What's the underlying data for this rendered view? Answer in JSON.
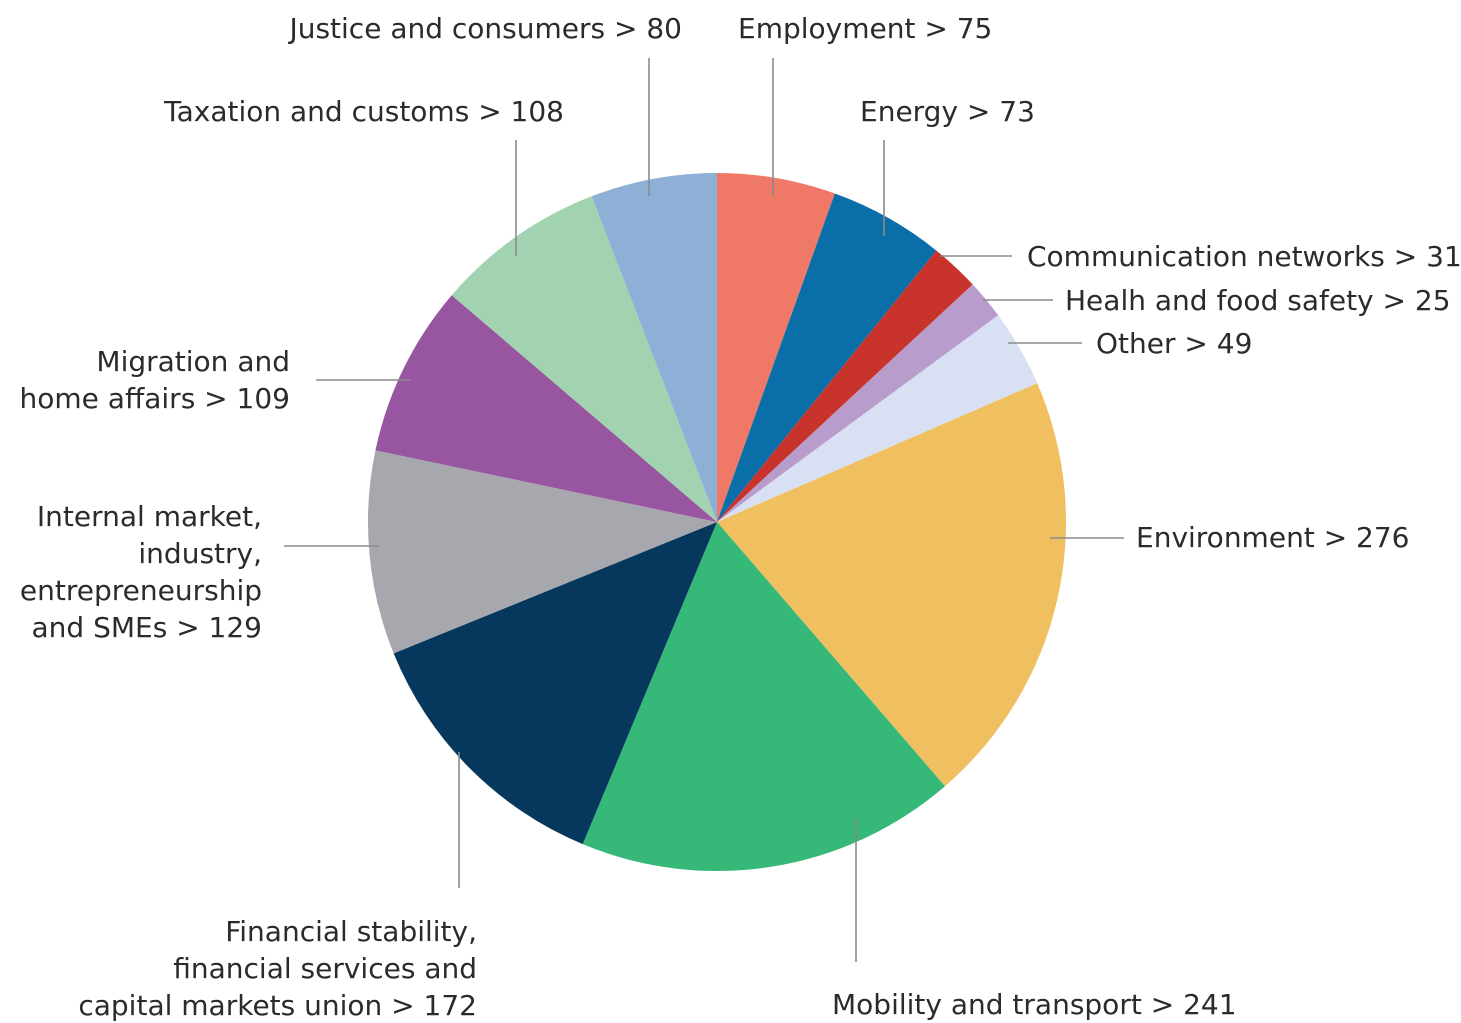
{
  "chart_data": {
    "type": "pie",
    "title": "",
    "start_angle_deg": 0,
    "direction": "clockwise",
    "slices": [
      {
        "name": "Employment",
        "value": 75,
        "color": "#f07866",
        "label_lines": [
          "Employment > 75"
        ]
      },
      {
        "name": "Energy",
        "value": 73,
        "color": "#0a6ea8",
        "label_lines": [
          "Energy > 73"
        ]
      },
      {
        "name": "Communication networks",
        "value": 31,
        "color": "#c8342c",
        "label_lines": [
          "Communication networks > 31"
        ]
      },
      {
        "name": "Healh and food safety",
        "value": 25,
        "color": "#b89ccb",
        "label_lines": [
          "Healh and food safety > 25"
        ]
      },
      {
        "name": "Other",
        "value": 49,
        "color": "#d9e0f3",
        "label_lines": [
          "Other > 49"
        ]
      },
      {
        "name": "Environment",
        "value": 276,
        "color": "#f0c060",
        "label_lines": [
          "Environment > 276"
        ]
      },
      {
        "name": "Mobility and transport",
        "value": 241,
        "color": "#35b878",
        "label_lines": [
          "Mobility and transport > 241"
        ]
      },
      {
        "name": "Financial stability, financial services and capital markets union",
        "value": 172,
        "color": "#05385c",
        "label_lines": [
          "Financial stability,",
          "financial services and",
          "capital markets union > 172"
        ]
      },
      {
        "name": "Internal market, industry, entrepreneurship and SMEs",
        "value": 129,
        "color": "#a7a8ad",
        "label_lines": [
          "Internal market,",
          "industry,",
          "entrepreneurship",
          "and SMEs > 129"
        ]
      },
      {
        "name": "Migration and home affairs",
        "value": 109,
        "color": "#9855a0",
        "label_lines": [
          "Migration and",
          "home affairs > 109"
        ]
      },
      {
        "name": "Taxation and customs",
        "value": 108,
        "color": "#a2d3b0",
        "label_lines": [
          "Taxation and customs > 108"
        ]
      },
      {
        "name": "Justice and consumers",
        "value": 80,
        "color": "#8eb0d6",
        "label_lines": [
          "Justice and consumers > 80"
        ]
      }
    ]
  }
}
